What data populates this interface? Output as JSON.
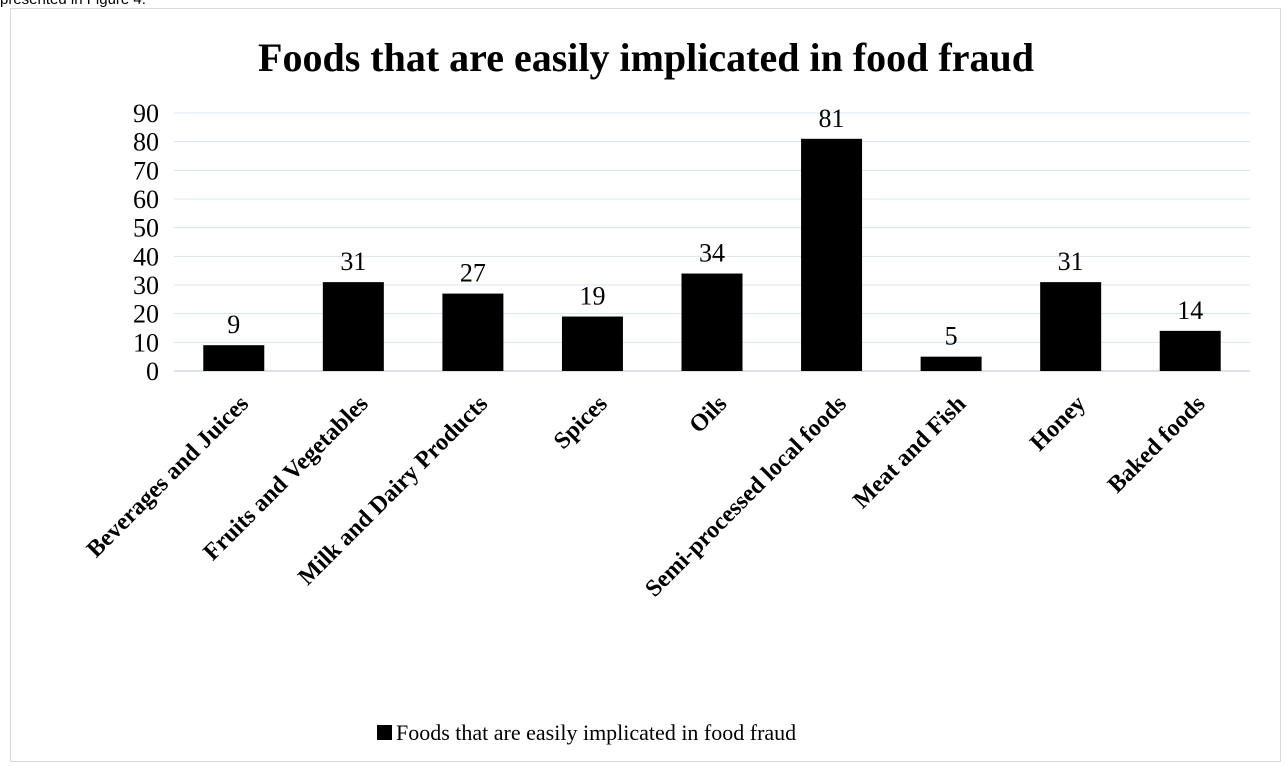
{
  "page": {
    "caption": "presented in Figure 4."
  },
  "chart_data": {
    "type": "bar",
    "title": "Foods that are easily implicated in food fraud",
    "xlabel": "",
    "ylabel": "",
    "categories": [
      "Beverages and Juices",
      "Fruits and Vegetables",
      "Milk and Dairy Products",
      "Spices",
      "Oils",
      "Semi-processed local foods",
      "Meat and Fish",
      "Honey",
      "Baked foods"
    ],
    "series": [
      {
        "name": "Foods that are easily implicated in food fraud",
        "values": [
          9,
          31,
          27,
          19,
          34,
          81,
          5,
          31,
          14
        ],
        "color": "#000000"
      }
    ],
    "ylim": [
      0,
      90
    ],
    "yticks": [
      0,
      10,
      20,
      30,
      40,
      50,
      60,
      70,
      80,
      90
    ],
    "grid": true,
    "grid_color": "#d9e2f3",
    "data_labels": true,
    "legend_position": "bottom"
  }
}
